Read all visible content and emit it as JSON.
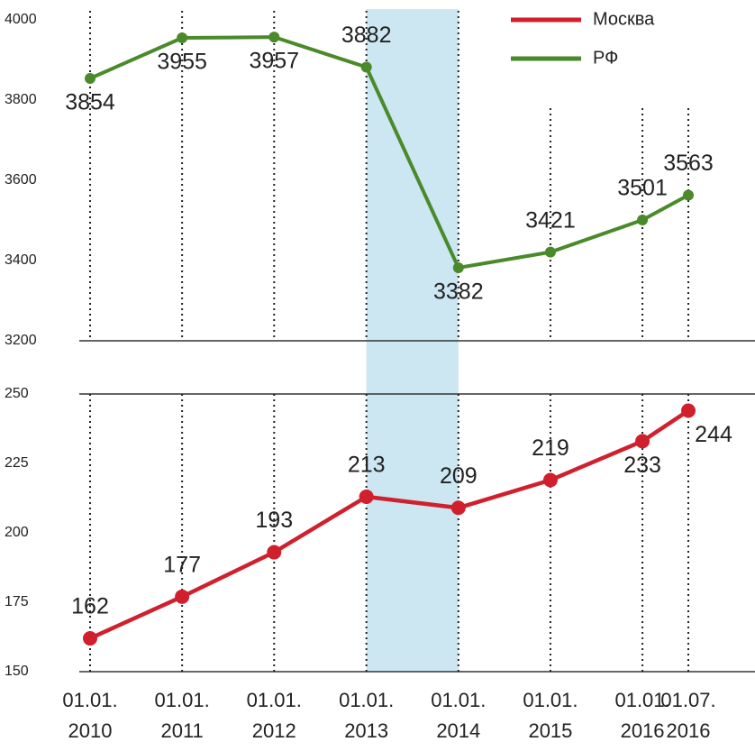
{
  "chart_data": [
    {
      "type": "line",
      "ylim": [
        3200,
        4000
      ],
      "yticks": [
        3200,
        3400,
        3600,
        3800,
        4000
      ],
      "series": [
        {
          "name": "РФ",
          "color": "#4a8a2a",
          "values": [
            3854,
            3955,
            3957,
            3882,
            3382,
            3421,
            3501,
            3563
          ]
        }
      ]
    },
    {
      "type": "line",
      "ylim": [
        150,
        250
      ],
      "yticks": [
        150,
        175,
        200,
        225,
        250
      ],
      "categories": [
        "01.01. 2010",
        "01.01. 2011",
        "01.01. 2012",
        "01.01. 2013",
        "01.01. 2014",
        "01.01. 2015",
        "01.01. 2016",
        "01.07. 2016"
      ],
      "series": [
        {
          "name": "Москва",
          "color": "#d0202e",
          "values": [
            162,
            177,
            193,
            213,
            209,
            219,
            233,
            244
          ]
        }
      ]
    }
  ]
}
